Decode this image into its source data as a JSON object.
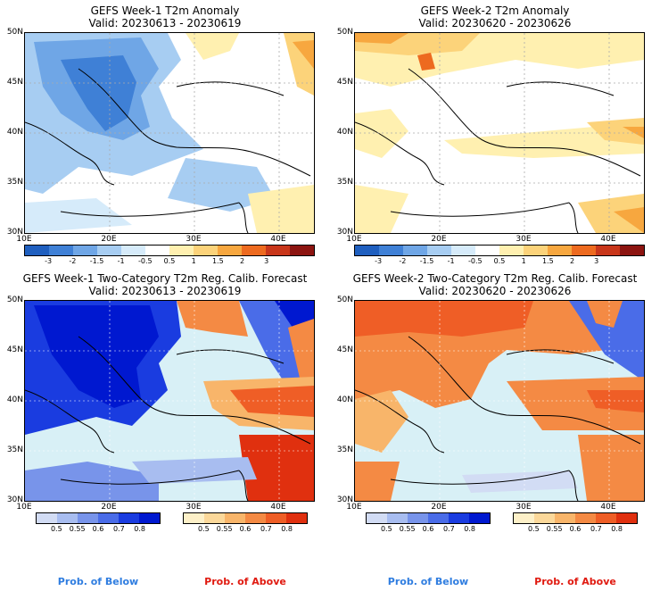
{
  "panels": [
    {
      "title": "GEFS Week-1 T2m Anomaly",
      "valid": "Valid: 20230613 - 20230619"
    },
    {
      "title": "GEFS Week-2 T2m Anomaly",
      "valid": "Valid: 20230620 - 20230626"
    },
    {
      "title": "GEFS Week-1 Two-Category T2m Reg. Calib. Forecast",
      "valid": "Valid: 20230613 - 20230619"
    },
    {
      "title": "GEFS Week-2 Two-Category T2m Reg. Calib. Forecast",
      "valid": "Valid: 20230620 - 20230626"
    }
  ],
  "lat_labels": [
    "50N",
    "45N",
    "40N",
    "35N",
    "30N"
  ],
  "lon_labels": [
    "10E",
    "20E",
    "30E",
    "40E"
  ],
  "anomaly_scale": {
    "labels": [
      "-3",
      "-2",
      "-1.5",
      "-1",
      "-0.5",
      "0.5",
      "1",
      "1.5",
      "2",
      "3"
    ],
    "colors": [
      "#1f5fbf",
      "#3f80d6",
      "#6fa6e6",
      "#a7cdf2",
      "#d6ebfa",
      "#ffffff",
      "#fff0b0",
      "#fcd37a",
      "#f7a73f",
      "#ed6a1f",
      "#c8361a",
      "#8c1410"
    ]
  },
  "prob_scale": {
    "labels": [
      "0.5",
      "0.55",
      "0.6",
      "0.7",
      "0.8"
    ],
    "below_colors": [
      "#d2dcf4",
      "#a8bdf0",
      "#7894ea",
      "#4a6ce8",
      "#1a3ce0",
      "#0018d0"
    ],
    "above_colors": [
      "#fdf0c8",
      "#fbd89a",
      "#f8b56a",
      "#f48a44",
      "#ef5e26",
      "#e0300f"
    ],
    "below_label": "Prob. of Below",
    "above_label": "Prob. of Above",
    "below_color": "#2f7de0",
    "above_color": "#e01a10"
  }
}
